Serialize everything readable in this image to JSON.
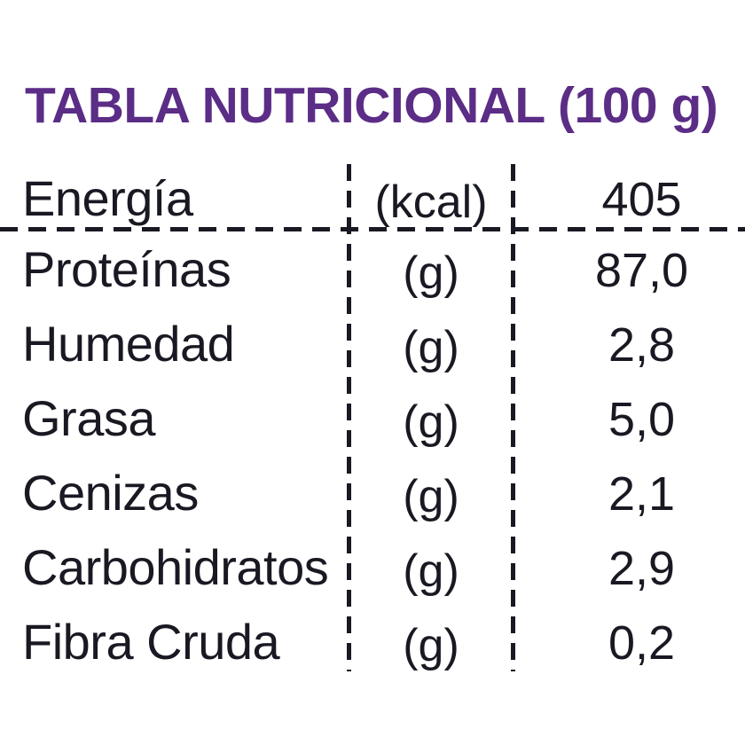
{
  "title": "TABLA NUTRICIONAL (100 g)",
  "colors": {
    "accent": "#5b2d86",
    "ink": "#191923",
    "background": "#ffffff"
  },
  "table": {
    "rows": [
      {
        "label": "Energía",
        "unit": "(kcal)",
        "value": "405"
      },
      {
        "label": "Proteínas",
        "unit": "(g)",
        "value": "87,0"
      },
      {
        "label": "Humedad",
        "unit": "(g)",
        "value": "2,8"
      },
      {
        "label": "Grasa",
        "unit": "(g)",
        "value": "5,0"
      },
      {
        "label": "Cenizas",
        "unit": "(g)",
        "value": "2,1"
      },
      {
        "label": "Carbohidratos",
        "unit": "(g)",
        "value": "2,9"
      },
      {
        "label": "Fibra Cruda",
        "unit": "(g)",
        "value": "0,2"
      }
    ]
  }
}
